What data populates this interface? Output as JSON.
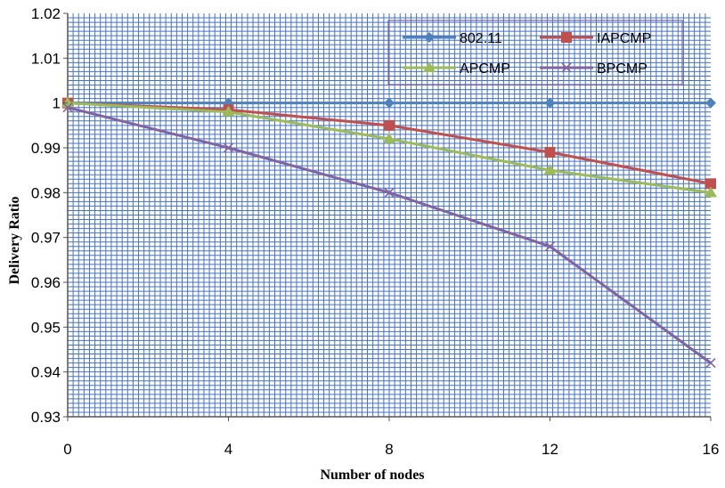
{
  "chart_data": {
    "type": "line",
    "title": "",
    "xlabel": "Number of nodes",
    "ylabel": "Delivery  Ratio",
    "x": [
      0,
      4,
      8,
      12,
      16
    ],
    "xticks": [
      "0",
      "4",
      "8",
      "12",
      "16"
    ],
    "ylim": [
      0.93,
      1.02
    ],
    "yticks": [
      "0.93",
      "0.94",
      "0.95",
      "0.96",
      "0.97",
      "0.98",
      "0.99",
      "1",
      "1.01",
      "1.02"
    ],
    "grid": true,
    "grid_color": "#4472C4",
    "legend_position": "top-right",
    "series": [
      {
        "name": "802.11",
        "color": "#4F81BD",
        "marker": "diamond",
        "values": [
          1.0,
          1.0,
          1.0,
          1.0,
          1.0
        ]
      },
      {
        "name": "IAPCMP",
        "color": "#C0504D",
        "marker": "square",
        "values": [
          1.0,
          0.9985,
          0.995,
          0.989,
          0.982
        ]
      },
      {
        "name": "APCMP",
        "color": "#9BBB59",
        "marker": "triangle",
        "values": [
          1.0,
          0.998,
          0.992,
          0.985,
          0.98
        ]
      },
      {
        "name": "BPCMP",
        "color": "#8064A2",
        "marker": "x",
        "values": [
          0.999,
          0.99,
          0.98,
          0.968,
          0.942
        ]
      }
    ]
  }
}
